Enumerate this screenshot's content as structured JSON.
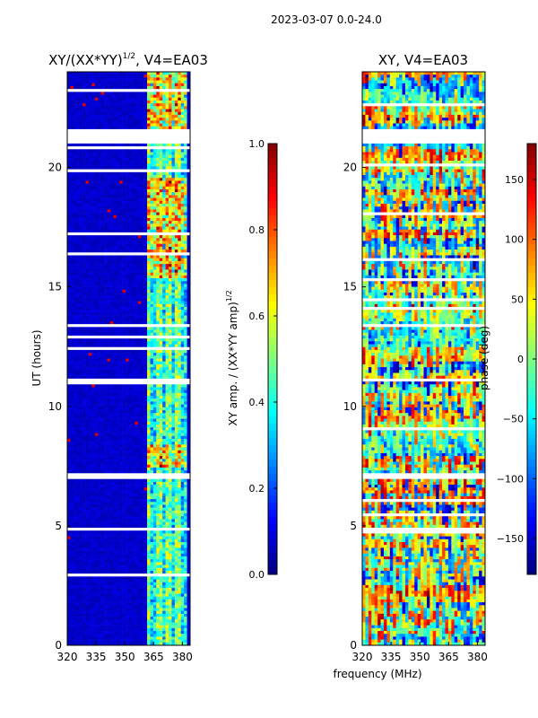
{
  "figure": {
    "suptitle": "2023-03-07 0.0-24.0",
    "shared_xlabel": "frequency (MHz)"
  },
  "chart_data": [
    {
      "type": "heatmap",
      "title": "XY/(XX*YY)",
      "title_sup": "1/2",
      "title_suffix": ", V4=EA03",
      "ylabel": "UT (hours)",
      "x": {
        "range": [
          320,
          384
        ],
        "ticks": [
          320,
          335,
          350,
          365,
          380
        ],
        "tick_labels": [
          "320",
          "335",
          "350",
          "365",
          "380"
        ]
      },
      "y": {
        "range": [
          0,
          24
        ],
        "ticks": [
          0,
          5,
          10,
          15,
          20
        ],
        "tick_labels": [
          "0",
          "5",
          "10",
          "15",
          "20"
        ]
      },
      "colorbar": {
        "label": "XY amp. / (XX*YY amp)",
        "label_sup": "1/2",
        "range": [
          0.0,
          1.0
        ],
        "ticks": [
          0.0,
          0.2,
          0.4,
          0.6,
          0.8,
          1.0
        ],
        "tick_labels": [
          "0.0",
          "0.2",
          "0.4",
          "0.6",
          "0.8",
          "1.0"
        ],
        "colormap": "jet"
      },
      "features": {
        "background_value": 0.05,
        "active_band_mhz": [
          361,
          382
        ],
        "dense_active_ut": [
          [
            7.4,
            8.4
          ],
          [
            15.4,
            19.6
          ],
          [
            21.2,
            24.0
          ]
        ],
        "blank_rows_ut": [
          [
            21.0,
            21.6
          ],
          [
            4.75,
            4.95
          ],
          [
            13.3,
            13.45
          ],
          [
            7.0,
            7.15
          ],
          [
            11.1,
            11.2
          ]
        ]
      }
    },
    {
      "type": "heatmap",
      "title": "XY, V4=EA03",
      "ylabel": "",
      "x": {
        "range": [
          320,
          384
        ],
        "ticks": [
          320,
          335,
          350,
          365,
          380
        ],
        "tick_labels": [
          "320",
          "335",
          "350",
          "365",
          "380"
        ]
      },
      "y": {
        "range": [
          0,
          24
        ],
        "ticks": [
          0,
          5,
          10,
          15,
          20
        ],
        "tick_labels": [
          "0",
          "5",
          "10",
          "15",
          "20"
        ]
      },
      "colorbar": {
        "label": "phase (deg)",
        "range": [
          -180,
          180
        ],
        "ticks": [
          -150,
          -100,
          -50,
          0,
          50,
          100,
          150
        ],
        "tick_labels": [
          "−150",
          "−100",
          "−50",
          "0",
          "50",
          "100",
          "150"
        ],
        "colormap": "jet"
      },
      "features": {
        "phase_noise_deg": 60,
        "blank_rows_ut": [
          [
            21.0,
            21.6
          ],
          [
            4.75,
            4.95
          ],
          [
            13.3,
            13.45
          ],
          [
            7.0,
            7.15
          ],
          [
            11.1,
            11.2
          ]
        ]
      }
    }
  ]
}
